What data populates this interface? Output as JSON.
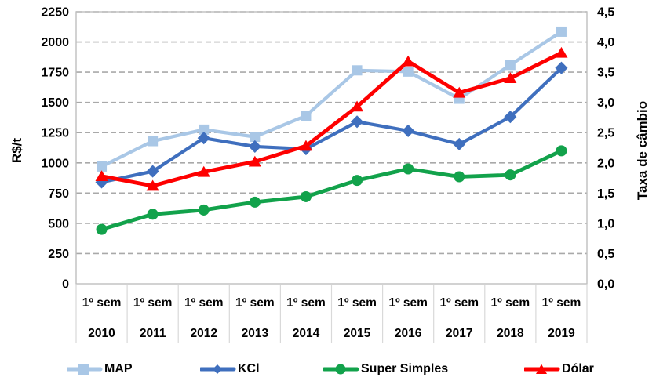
{
  "chart_data": {
    "type": "line",
    "title": "",
    "grid": "horizontal-dashed",
    "legend_position": "bottom",
    "categories": [
      {
        "sem": "1º sem",
        "year": "2010"
      },
      {
        "sem": "1º sem",
        "year": "2011"
      },
      {
        "sem": "1º sem",
        "year": "2012"
      },
      {
        "sem": "1º sem",
        "year": "2013"
      },
      {
        "sem": "1º sem",
        "year": "2014"
      },
      {
        "sem": "1º sem",
        "year": "2015"
      },
      {
        "sem": "1º sem",
        "year": "2016"
      },
      {
        "sem": "1º sem",
        "year": "2017"
      },
      {
        "sem": "1º sem",
        "year": "2018"
      },
      {
        "sem": "1º sem",
        "year": "2019"
      }
    ],
    "left_axis": {
      "label": "R$/t",
      "min": 0,
      "max": 2250,
      "ticks": [
        {
          "label": "2250",
          "value": 2250
        },
        {
          "label": "2000",
          "value": 2000
        },
        {
          "label": "1750",
          "value": 1750
        },
        {
          "label": "1500",
          "value": 1500
        },
        {
          "label": "1250",
          "value": 1250
        },
        {
          "label": "1000",
          "value": 1000
        },
        {
          "label": "750",
          "value": 750
        },
        {
          "label": "500",
          "value": 500
        },
        {
          "label": "250",
          "value": 250
        },
        {
          "label": "0",
          "value": 0
        }
      ]
    },
    "right_axis": {
      "label": "Taxa de câmbio",
      "min": 0,
      "max": 4.5,
      "ticks": [
        {
          "label": "4,5",
          "value": 4.5
        },
        {
          "label": "4,0",
          "value": 4.0
        },
        {
          "label": "3,5",
          "value": 3.5
        },
        {
          "label": "3,0",
          "value": 3.0
        },
        {
          "label": "2,5",
          "value": 2.5
        },
        {
          "label": "2,0",
          "value": 2.0
        },
        {
          "label": "1,5",
          "value": 1.5
        },
        {
          "label": "1,0",
          "value": 1.0
        },
        {
          "label": "0,5",
          "value": 0.5
        },
        {
          "label": "0,0",
          "value": 0.0
        }
      ]
    },
    "series": [
      {
        "name": "MAP",
        "axis": "left",
        "marker": "square",
        "color": "#A9C7E6",
        "values": [
          970,
          1180,
          1275,
          1215,
          1390,
          1765,
          1755,
          1530,
          1810,
          2085
        ]
      },
      {
        "name": "KCl",
        "axis": "left",
        "marker": "diamond",
        "color": "#3F6FBE",
        "values": [
          840,
          930,
          1205,
          1135,
          1115,
          1340,
          1265,
          1155,
          1380,
          1785
        ]
      },
      {
        "name": "Super Simples",
        "axis": "left",
        "marker": "circle",
        "color": "#12A24B",
        "values": [
          450,
          575,
          610,
          675,
          720,
          855,
          950,
          885,
          900,
          1100
        ]
      },
      {
        "name": "Dólar",
        "axis": "right",
        "marker": "triangle",
        "color": "#FE0000",
        "values": [
          1.78,
          1.62,
          1.85,
          2.02,
          2.28,
          2.93,
          3.68,
          3.16,
          3.4,
          3.82
        ]
      }
    ],
    "legend": [
      {
        "label": "MAP"
      },
      {
        "label": "KCl"
      },
      {
        "label": "Super Simples"
      },
      {
        "label": "Dólar"
      }
    ],
    "colors": {
      "plot_border": "#BFBFBF",
      "gridline": "#A9A9A9",
      "category_divider": "#D9D9D9",
      "text": "#000000"
    }
  }
}
